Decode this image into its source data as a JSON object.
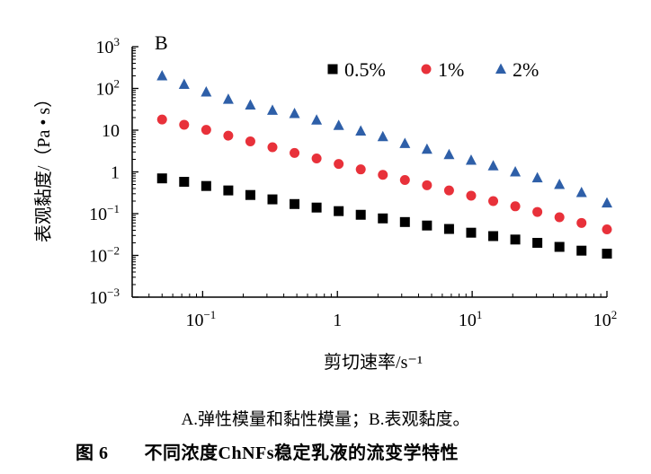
{
  "caption": "A.弹性模量和黏性模量；B.表观黏度。",
  "figure_label": "图 6",
  "figure_title": "不同浓度ChNFs稳定乳液的流变学特性",
  "chart_data": {
    "type": "scatter",
    "panel_label": "B",
    "xlabel": "剪切速率/s⁻¹",
    "ylabel": "表观黏度/（Pa • s）",
    "xscale": "log",
    "yscale": "log",
    "xlim": [
      0.03,
      100
    ],
    "ylim": [
      0.001,
      1000
    ],
    "x_ticks": [
      {
        "value": 0.1,
        "base": "10",
        "exp": "−1"
      },
      {
        "value": 1,
        "base": "1",
        "exp": ""
      },
      {
        "value": 10,
        "base": "10",
        "exp": "1"
      },
      {
        "value": 100,
        "base": "10",
        "exp": "2"
      }
    ],
    "y_ticks": [
      {
        "value": 1000,
        "base": "10",
        "exp": "3"
      },
      {
        "value": 100,
        "base": "10",
        "exp": "2"
      },
      {
        "value": 10,
        "base": "10",
        "exp": ""
      },
      {
        "value": 1,
        "base": "1",
        "exp": ""
      },
      {
        "value": 0.1,
        "base": "10",
        "exp": "−1"
      },
      {
        "value": 0.01,
        "base": "10",
        "exp": "−2"
      },
      {
        "value": 0.001,
        "base": "10",
        "exp": "−3"
      }
    ],
    "legend_position": "top-right",
    "x": [
      0.05,
      0.0729,
      0.1063,
      0.155,
      0.226,
      0.3296,
      0.4806,
      0.7008,
      1.022,
      1.49,
      2.173,
      3.168,
      4.62,
      6.737,
      9.824,
      14.33,
      20.89,
      30.46,
      44.42,
      64.78,
      100
    ],
    "series": [
      {
        "name": "0.5%",
        "marker": "square",
        "color": "#000000",
        "values": [
          0.7,
          0.58,
          0.46,
          0.36,
          0.28,
          0.22,
          0.17,
          0.14,
          0.115,
          0.094,
          0.077,
          0.063,
          0.052,
          0.043,
          0.035,
          0.029,
          0.024,
          0.02,
          0.016,
          0.013,
          0.011
        ]
      },
      {
        "name": "1%",
        "marker": "circle",
        "color": "#e8313a",
        "values": [
          18,
          13.5,
          10.2,
          7.4,
          5.4,
          3.9,
          2.85,
          2.1,
          1.55,
          1.15,
          0.85,
          0.64,
          0.48,
          0.36,
          0.27,
          0.2,
          0.15,
          0.11,
          0.082,
          0.06,
          0.042
        ]
      },
      {
        "name": "2%",
        "marker": "triangle",
        "color": "#2e5fa8",
        "values": [
          200,
          125,
          82,
          55,
          40,
          30,
          25,
          17.5,
          13,
          9.5,
          7,
          4.8,
          3.5,
          2.6,
          1.9,
          1.4,
          1.0,
          0.72,
          0.5,
          0.32,
          0.18
        ]
      }
    ]
  }
}
